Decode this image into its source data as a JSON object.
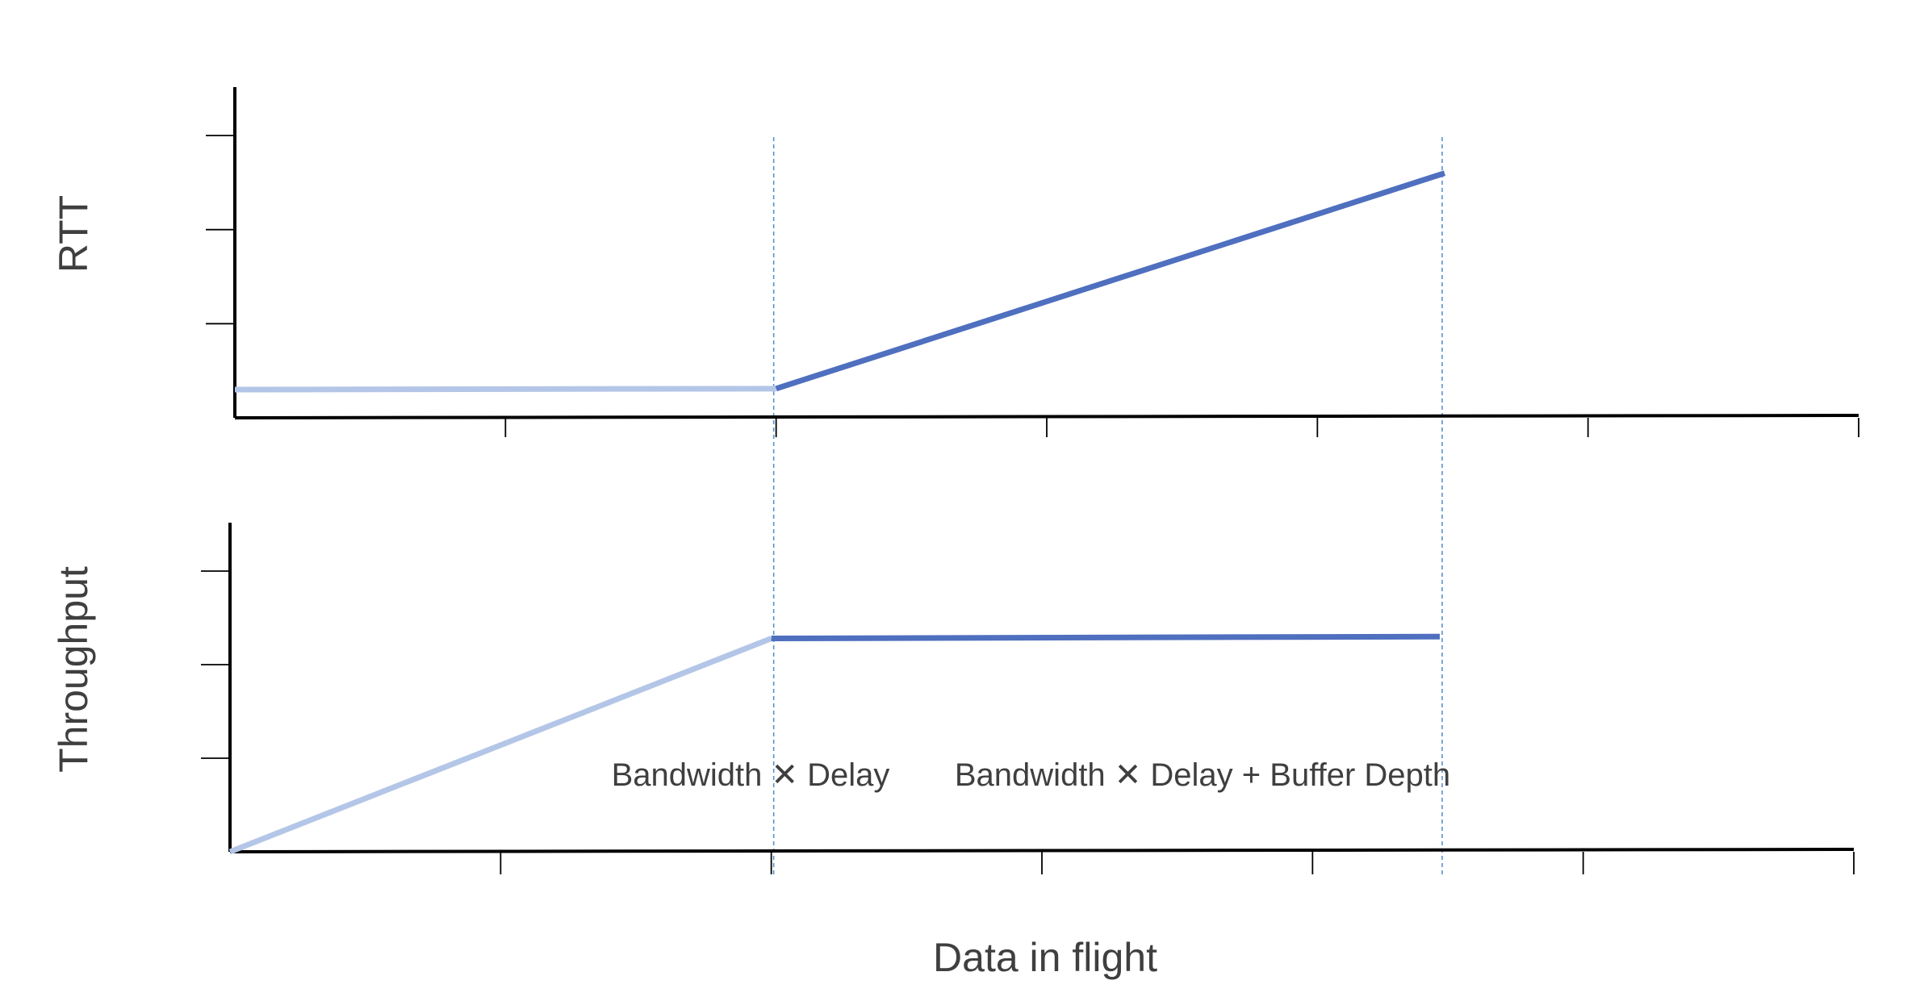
{
  "colors": {
    "before_bdp": "#b4c6e7",
    "after_bdp": "#4f6fbf",
    "guide": "#5b8fd0",
    "axis": "#000000",
    "text": "#3f3f3f"
  },
  "chart_data": [
    {
      "type": "line",
      "ylabel": "RTT",
      "xlabel": "",
      "xlim": [
        0,
        6
      ],
      "ylim": [
        0,
        3
      ],
      "x_ticks": 6,
      "y_ticks": 3,
      "grid": false,
      "series": [
        {
          "points": [
            [
              0,
              0.3
            ],
            [
              2,
              0.31
            ]
          ],
          "color": "#b4c6e7"
        },
        {
          "points": [
            [
              2,
              0.31
            ],
            [
              4.47,
              2.6
            ]
          ],
          "color": "#4f6fbf"
        }
      ]
    },
    {
      "type": "line",
      "ylabel": "Throughput",
      "xlabel": "Data in flight",
      "xlim": [
        0,
        6
      ],
      "ylim": [
        0,
        3
      ],
      "x_ticks": 6,
      "y_ticks": 3,
      "grid": false,
      "series": [
        {
          "points": [
            [
              0,
              0
            ],
            [
              2,
              2.28
            ]
          ],
          "color": "#b4c6e7"
        },
        {
          "points": [
            [
              2,
              2.28
            ],
            [
              4.47,
              2.3
            ]
          ],
          "color": "#4f6fbf"
        }
      ]
    }
  ],
  "markers": [
    {
      "x": 2,
      "label": "Bandwidth ✕ Delay"
    },
    {
      "x": 4.47,
      "label": "Bandwidth ✕ Delay + Buffer Depth"
    }
  ]
}
